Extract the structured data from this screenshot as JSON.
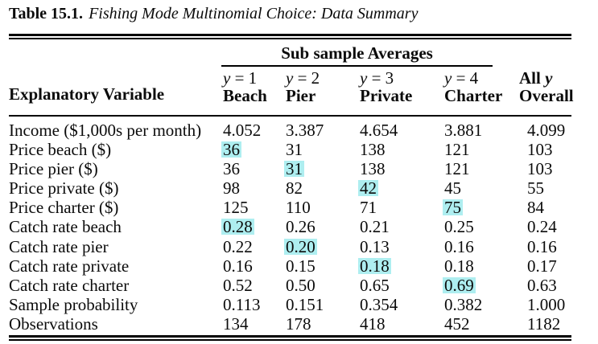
{
  "page": {
    "title_label": "Table 15.1.",
    "title_caption": "Fishing Mode Multinomial Choice: Data Summary"
  },
  "table": {
    "group_header": "Sub sample Averages",
    "stub_header": "Explanatory Variable",
    "columns": [
      {
        "math_var": "y",
        "math_rest": " = 1",
        "name": "Beach"
      },
      {
        "math_var": "y",
        "math_rest": " = 2",
        "name": "Pier"
      },
      {
        "math_var": "y",
        "math_rest": " = 3",
        "name": "Private"
      },
      {
        "math_var": "y",
        "math_rest": " = 4",
        "name": "Charter"
      },
      {
        "pre": "All ",
        "math_var": "y",
        "name": "Overall"
      }
    ],
    "highlight_color": "#aeeef0",
    "rows": [
      {
        "label": "Income ($1,000s per month)",
        "values": [
          "4.052",
          "3.387",
          "4.654",
          "3.881",
          "4.099"
        ],
        "highlight": -1
      },
      {
        "label": "Price beach ($)",
        "values": [
          "36",
          "31",
          "138",
          "121",
          "103"
        ],
        "highlight": 0
      },
      {
        "label": "Price pier ($)",
        "values": [
          "36",
          "31",
          "138",
          "121",
          "103"
        ],
        "highlight": 1
      },
      {
        "label": "Price private ($)",
        "values": [
          "98",
          "82",
          "42",
          "45",
          "55"
        ],
        "highlight": 2
      },
      {
        "label": "Price charter ($)",
        "values": [
          "125",
          "110",
          "71",
          "75",
          "84"
        ],
        "highlight": 3
      },
      {
        "label": "Catch rate beach",
        "values": [
          "0.28",
          "0.26",
          "0.21",
          "0.25",
          "0.24"
        ],
        "highlight": 0
      },
      {
        "label": "Catch rate pier",
        "values": [
          "0.22",
          "0.20",
          "0.13",
          "0.16",
          "0.16"
        ],
        "highlight": 1
      },
      {
        "label": "Catch rate private",
        "values": [
          "0.16",
          "0.15",
          "0.18",
          "0.18",
          "0.17"
        ],
        "highlight": 2
      },
      {
        "label": "Catch rate charter",
        "values": [
          "0.52",
          "0.50",
          "0.65",
          "0.69",
          "0.63"
        ],
        "highlight": 3
      },
      {
        "label": "Sample probability",
        "values": [
          "0.113",
          "0.151",
          "0.354",
          "0.382",
          "1.000"
        ],
        "highlight": -1
      },
      {
        "label": "Observations",
        "values": [
          "134",
          "178",
          "418",
          "452",
          "1182"
        ],
        "highlight": -1
      }
    ]
  }
}
